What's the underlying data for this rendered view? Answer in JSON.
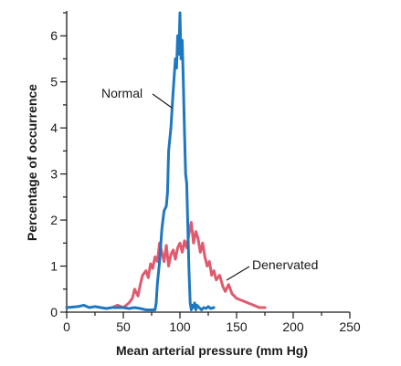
{
  "chart_data": {
    "type": "line",
    "xlabel": "Mean arterial pressure (mm Hg)",
    "ylabel": "Percentage of occurrence",
    "xlim": [
      0,
      250
    ],
    "ylim": [
      0,
      6.5
    ],
    "x_ticks": [
      0,
      50,
      100,
      150,
      200,
      250
    ],
    "y_ticks": [
      0,
      1,
      2,
      3,
      4,
      5,
      6
    ],
    "x_tick_labels": [
      "0",
      "50",
      "100",
      "150",
      "200",
      "250"
    ],
    "y_tick_labels": [
      "0",
      "1",
      "2",
      "3",
      "4",
      "5",
      "6"
    ],
    "grid": false,
    "annotations": [
      {
        "text": "Normal",
        "series": "Normal"
      },
      {
        "text": "Denervated",
        "series": "Denervated"
      }
    ],
    "series": [
      {
        "name": "Normal",
        "color": "#1f77c0",
        "x": [
          0,
          10,
          15,
          20,
          25,
          30,
          35,
          40,
          45,
          50,
          55,
          60,
          65,
          70,
          75,
          78,
          79,
          80,
          82,
          84,
          86,
          88,
          89,
          90,
          92,
          94,
          96,
          97,
          98,
          99,
          100,
          101,
          102,
          103,
          104,
          105,
          106,
          107,
          108,
          109,
          110,
          111,
          112,
          113,
          114,
          115,
          117,
          119,
          121,
          123,
          125,
          127,
          130
        ],
        "y": [
          0.1,
          0.12,
          0.15,
          0.1,
          0.12,
          0.1,
          0.08,
          0.1,
          0.1,
          0.1,
          0.08,
          0.1,
          0.08,
          0.05,
          0.05,
          0.05,
          0.2,
          0.6,
          1.1,
          1.8,
          2.2,
          2.3,
          2.6,
          3.5,
          4.0,
          4.8,
          5.5,
          5.3,
          6.0,
          5.6,
          6.5,
          5.5,
          5.9,
          5.0,
          3.9,
          3.0,
          2.8,
          1.8,
          0.9,
          0.2,
          0.05,
          0.15,
          0.1,
          0.2,
          0.05,
          0.15,
          0.1,
          0.05,
          0.1,
          0.08,
          0.12,
          0.08,
          0.1
        ]
      },
      {
        "name": "Denervated",
        "color": "#e05a6e",
        "x": [
          40,
          45,
          50,
          55,
          58,
          60,
          63,
          65,
          67,
          70,
          72,
          74,
          76,
          78,
          80,
          82,
          84,
          86,
          88,
          90,
          92,
          94,
          96,
          98,
          100,
          102,
          104,
          106,
          108,
          110,
          112,
          114,
          116,
          118,
          120,
          122,
          124,
          126,
          128,
          130,
          132,
          135,
          138,
          140,
          143,
          146,
          150,
          155,
          160,
          165,
          170,
          175
        ],
        "y": [
          0.1,
          0.15,
          0.1,
          0.2,
          0.3,
          0.5,
          0.35,
          0.6,
          0.8,
          0.9,
          0.75,
          1.05,
          0.95,
          1.2,
          1.1,
          1.5,
          1.3,
          1.1,
          1.45,
          1.0,
          1.25,
          1.35,
          1.15,
          1.4,
          1.5,
          1.3,
          1.55,
          1.4,
          1.7,
          1.95,
          1.5,
          1.75,
          1.6,
          1.3,
          1.5,
          1.2,
          1.0,
          1.1,
          0.8,
          0.9,
          0.7,
          0.8,
          0.55,
          0.45,
          0.6,
          0.4,
          0.3,
          0.25,
          0.2,
          0.15,
          0.1,
          0.1
        ]
      }
    ]
  }
}
